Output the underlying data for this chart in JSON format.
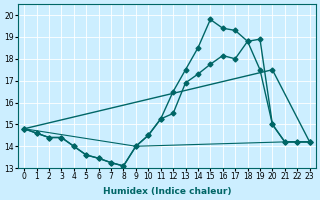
{
  "xlabel": "Humidex (Indice chaleur)",
  "background_color": "#cceeff",
  "grid_color": "#aaddcc",
  "line_color": "#006666",
  "xlim": [
    -0.5,
    23.5
  ],
  "ylim": [
    13,
    20.5
  ],
  "yticks": [
    13,
    14,
    15,
    16,
    17,
    18,
    19,
    20
  ],
  "xticks": [
    0,
    1,
    2,
    3,
    4,
    5,
    6,
    7,
    8,
    9,
    10,
    11,
    12,
    13,
    14,
    15,
    16,
    17,
    18,
    19,
    20,
    21,
    22,
    23
  ],
  "series": [
    {
      "x": [
        0,
        1,
        2,
        3,
        4,
        5,
        6,
        7,
        8,
        9,
        10,
        11,
        12,
        13,
        14,
        15,
        16,
        17,
        18,
        19,
        20,
        21,
        22,
        23
      ],
      "y": [
        14.8,
        14.6,
        14.4,
        14.4,
        14.0,
        13.6,
        13.45,
        13.25,
        13.1,
        14.0,
        14.5,
        15.25,
        15.5,
        16.9,
        17.3,
        17.75,
        18.15,
        18.0,
        18.8,
        17.5,
        15.0,
        14.2,
        14.2,
        14.2
      ],
      "marker": "D",
      "markersize": 2.5,
      "linewidth": 1.0
    },
    {
      "x": [
        0,
        1,
        2,
        3,
        4,
        5,
        6,
        7,
        8,
        9,
        10,
        11,
        12,
        13,
        14,
        15,
        16,
        17,
        18,
        19,
        20,
        21,
        22,
        23
      ],
      "y": [
        14.8,
        14.6,
        14.4,
        14.4,
        14.0,
        13.6,
        13.45,
        13.25,
        13.1,
        14.0,
        14.5,
        15.25,
        16.5,
        17.5,
        18.5,
        19.8,
        19.4,
        19.3,
        18.8,
        18.9,
        15.0,
        14.2,
        14.2,
        14.2
      ],
      "marker": "D",
      "markersize": 2.5,
      "linewidth": 1.0
    },
    {
      "x": [
        0,
        20,
        23
      ],
      "y": [
        14.8,
        17.5,
        14.2
      ],
      "marker": "D",
      "markersize": 2.5,
      "linewidth": 1.0
    },
    {
      "x": [
        0,
        9,
        21,
        23
      ],
      "y": [
        14.8,
        14.0,
        14.2,
        14.2
      ],
      "marker": null,
      "markersize": 0,
      "linewidth": 0.8
    }
  ]
}
